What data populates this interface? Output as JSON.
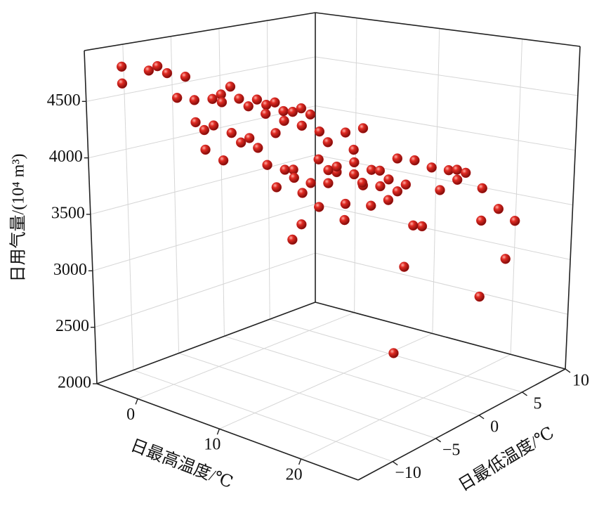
{
  "chart_data": {
    "type": "scatter3d",
    "x_label": "日最高温度/℃",
    "y_label": "日最低温度/℃",
    "z_label": "日用气量/(10⁴ m³)",
    "color": "#cc1f1f",
    "xlim": [
      -5,
      27
    ],
    "ylim": [
      -14,
      10
    ],
    "zlim": [
      2000,
      4950
    ],
    "xticks": [
      0,
      10,
      20
    ],
    "yticks": [
      {
        "value": -10,
        "label": "−10"
      },
      {
        "value": -5,
        "label": "−5"
      },
      0,
      5,
      10
    ],
    "zticks": [
      2000,
      2500,
      3000,
      3500,
      4000,
      4500
    ],
    "grid": true,
    "x": [
      -3,
      -3,
      -1,
      0,
      0,
      1,
      0,
      2,
      3,
      4,
      4,
      3,
      5,
      5,
      6,
      6,
      7,
      7,
      8,
      8,
      9,
      9,
      1,
      2,
      2,
      3,
      4,
      3,
      1,
      2,
      5,
      6,
      7,
      8,
      9,
      10,
      11,
      12,
      12,
      10,
      5,
      7,
      5,
      6,
      7,
      8,
      9,
      10,
      11,
      12,
      13,
      14,
      15,
      11,
      12,
      13,
      14,
      10,
      11,
      9,
      8,
      8,
      12,
      13,
      16,
      17,
      18,
      18,
      17,
      19,
      16,
      20,
      21,
      19,
      15,
      15,
      14,
      20,
      18,
      14,
      10,
      11,
      12,
      13,
      9,
      6
    ],
    "y": [
      -12,
      -12,
      -11,
      -11,
      -10,
      -9,
      -9,
      -9,
      -8,
      -8,
      -7,
      -7,
      -7,
      -6,
      -6,
      -5,
      -6,
      -5,
      -5,
      -4,
      -4,
      -3,
      -8,
      -7,
      -8,
      -6,
      -5,
      -5,
      -7,
      -6,
      -5,
      -4,
      -4,
      -3,
      -2,
      -2,
      -1,
      0,
      -1,
      -3,
      -4,
      -3,
      -3,
      -2,
      -2,
      -2,
      -1,
      -1,
      0,
      1,
      1,
      2,
      3,
      1,
      2,
      3,
      3,
      0,
      -1,
      -2,
      -3,
      -4,
      1,
      2,
      4,
      5,
      5,
      6,
      6,
      7,
      5,
      8,
      9,
      7,
      4,
      3,
      3,
      9,
      8,
      2,
      -1,
      0,
      0,
      2,
      -1,
      -3
    ],
    "z": [
      4820,
      4670,
      4810,
      4870,
      4790,
      4760,
      4550,
      4570,
      4580,
      4640,
      4690,
      4530,
      4600,
      4510,
      4590,
      4520,
      4480,
      4560,
      4500,
      4470,
      4520,
      4440,
      4330,
      4300,
      4280,
      4230,
      4180,
      4120,
      4060,
      3960,
      4110,
      4240,
      4370,
      4320,
      4260,
      4180,
      4260,
      4290,
      4120,
      4050,
      3930,
      3900,
      3700,
      3780,
      3660,
      3770,
      3760,
      3880,
      3960,
      3880,
      3890,
      3990,
      3960,
      3720,
      3700,
      3640,
      3720,
      3560,
      3460,
      3570,
      3420,
      3310,
      3550,
      3590,
      3880,
      3840,
      3860,
      3800,
      3720,
      3640,
      3640,
      3430,
      3300,
      3340,
      3320,
      3360,
      2960,
      2930,
      2580,
      2200,
      3930,
      3850,
      3790,
      3780,
      3880,
      3880
    ]
  }
}
